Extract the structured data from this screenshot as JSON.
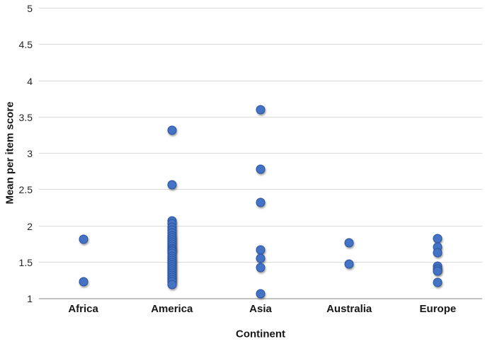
{
  "chart_data": {
    "type": "scatter",
    "title": "",
    "xlabel": "Continent",
    "ylabel": "Mean per item score",
    "categories": [
      "Africa",
      "America",
      "Asia",
      "Australia",
      "Europe"
    ],
    "ylim": [
      1,
      5
    ],
    "ytick_values": [
      5,
      4.5,
      4,
      3.5,
      3,
      2.5,
      2,
      1.5,
      1
    ],
    "ytick_labels": [
      "5",
      "4.5",
      "4",
      "3.5",
      "3",
      "2.5",
      "2",
      "1.5",
      "1"
    ],
    "grid": "horizontal-only",
    "legend_position": "none",
    "marker_shape": "circle",
    "marker_color": "#4472C4",
    "marker_border_color": "#2A549E",
    "gridline_color": "#D9D9D9",
    "series": [
      {
        "category": "Africa",
        "values": [
          1.81,
          1.22
        ]
      },
      {
        "category": "America",
        "values": [
          3.31,
          2.56,
          2.06,
          2.02,
          1.98,
          1.94,
          1.9,
          1.86,
          1.83,
          1.8,
          1.77,
          1.74,
          1.71,
          1.68,
          1.66,
          1.64,
          1.61,
          1.58,
          1.55,
          1.52,
          1.49,
          1.46,
          1.43,
          1.4,
          1.37,
          1.34,
          1.31,
          1.28,
          1.25,
          1.22,
          1.19
        ]
      },
      {
        "category": "Asia",
        "values": [
          3.6,
          2.78,
          2.32,
          1.66,
          1.55,
          1.42,
          1.06
        ]
      },
      {
        "category": "Australia",
        "values": [
          1.76,
          1.47
        ]
      },
      {
        "category": "Europe",
        "values": [
          1.82,
          1.7,
          1.62,
          1.44,
          1.4,
          1.37,
          1.21
        ]
      }
    ]
  }
}
